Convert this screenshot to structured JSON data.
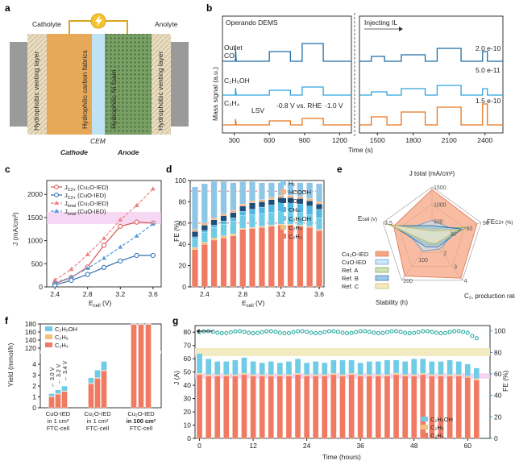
{
  "panels": {
    "a": {
      "letter": "a",
      "labels": {
        "catholyte": "Catholyte",
        "anolyte": "Anolyte",
        "hvl_left": "Hydrophobic venting layer",
        "carbon": "Hydrophilic carbon fabrics",
        "nifoam": "Hydrophilic Ni foam",
        "hvl_right": "Hydrophobic venting layer",
        "cem": "CEM",
        "cathode": "Cathode",
        "anode": "Anode"
      },
      "colors": {
        "wire": "#d9a520",
        "catalyst": "#e39a3b",
        "nifoam": "#6b8f5a",
        "membrane": "#bfe3f2",
        "plate": "#9a9a9a"
      },
      "icon": "lightning-icon"
    },
    "b": {
      "letter": "b",
      "labels": {
        "title": "Operando DEMS",
        "inject": "Injecting IL",
        "s1": "Outlet",
        "s1b": "CO",
        "s2": "C₂H₅OH",
        "s3": "C₂H₄",
        "lsv": "LSV",
        "v1": "-0.8 V vs. RHE",
        "v2": "-1.0 V",
        "scale1": "2.0 e-10",
        "scale2": "5.0 e-11",
        "scale3": "1.5 e-10",
        "ylabel": "Mass signal (a.u.)",
        "xlabel": "Time (s)"
      },
      "ticks_left": [
        "300",
        "600",
        "900",
        "1200"
      ],
      "ticks_right": [
        "1500",
        "1800",
        "2100",
        "2400"
      ],
      "colors": {
        "co": "#1f6ea8",
        "eth": "#2ea3dc",
        "c2h4": "#e8761c"
      }
    },
    "c": {
      "letter": "c",
      "ylabel": "J (mA/cm²)",
      "xlabel": "E",
      "xlabel_sub": "cell",
      "xlabel_unit": " (V)",
      "xticks": [
        "2.4",
        "2.8",
        "3.2",
        "3.6"
      ],
      "yticks": [
        "0",
        "500",
        "1000",
        "1500",
        "2000"
      ],
      "legend": [
        "J (Cu₂O-IED)",
        "J (CuO-IED)",
        "J (Cu₂O-IED)",
        "J (CuO-IED)"
      ],
      "legend_sub": [
        "C2+",
        "C2+",
        "total",
        "total"
      ]
    },
    "d": {
      "letter": "d",
      "ylabel": "FE (%)",
      "xlabel": "E",
      "xlabel_sub": "cell",
      "xlabel_unit": " (V)",
      "xticks": [
        "2.4",
        "2.8",
        "3.2",
        "3.6"
      ],
      "yticks": [
        "0",
        "20",
        "40",
        "60",
        "80",
        "100"
      ],
      "legend": [
        "H₂",
        "HCOOH",
        "CO",
        "CH₄",
        "C₂H₅OH",
        "C₂H₆",
        "C₂H₄"
      ]
    },
    "e": {
      "letter": "e",
      "axes": [
        "J total (mA/cm²)",
        "FE",
        "C₂, production rate",
        "Stability (h)",
        "E"
      ],
      "axis_extra": [
        "",
        "C2+ (%)",
        "(mmol/h)",
        "",
        "cell (V)"
      ],
      "rtick_j": [
        "500",
        "1000",
        "1500"
      ],
      "rtick_fe": [
        "30",
        "60",
        "90"
      ],
      "rtick_rate": [
        "2",
        "3",
        "4"
      ],
      "rtick_stab": [
        "100",
        "200"
      ],
      "rtick_e": [
        "3.5"
      ],
      "legend": [
        "Cu₂O-IED",
        "CuO-IED",
        "Ref. A",
        "Ref. B",
        "Ref. C"
      ]
    },
    "f": {
      "letter": "f",
      "ylabel": "Yield (mmol/h)",
      "yticks": [
        "0",
        "1",
        "2",
        "3",
        "4",
        "120",
        "140",
        "160",
        "180"
      ],
      "volts": [
        "3.0 V",
        "3.2 V",
        "3.4 V"
      ],
      "groups": [
        [
          "CuO-IED",
          "in 1 cm²",
          "FTC-cell"
        ],
        [
          "Cu₂O-IED",
          "in 1 cm²",
          "FTC-cell"
        ],
        [
          "Cu₂O-IED",
          "in 100 cm²",
          "FTC-cell"
        ]
      ],
      "legend": [
        "C₂H₅OH",
        "C₂H₆",
        "C₂H₄"
      ]
    },
    "g": {
      "letter": "g",
      "ylabel_left": "J (A)",
      "ylabel_right": "FE (%)",
      "xlabel": "Time (hours)",
      "xticks": [
        "0",
        "12",
        "24",
        "36",
        "48",
        "60"
      ],
      "yticks_left": [
        "0",
        "10",
        "20",
        "30",
        "40",
        "50",
        "60",
        "70",
        "80"
      ],
      "yticks_right": [
        "0",
        "20",
        "40",
        "60",
        "80",
        "100"
      ],
      "legend": [
        "C₂H₅OH",
        "C₂H₆",
        "C₂H₄"
      ]
    }
  },
  "colors": {
    "red_line": "#d9534f",
    "blue_line": "#2c6db0",
    "red_dash": "#f08080",
    "blue_dash": "#5b9bd5",
    "h2": "#8fc6e6",
    "hcooh": "#f4b183",
    "co": "#1f4e79",
    "ch4": "#52b7e3",
    "c2h5oh": "#6fcbe6",
    "c2h6": "#f1c27d",
    "c2h4": "#f07b62",
    "teal": "#1aa39a",
    "pink": "#f4c8f0",
    "cream": "#f3eac2"
  },
  "chart_data": [
    {
      "panel": "c",
      "type": "line",
      "x": [
        2.4,
        2.6,
        2.8,
        3.0,
        3.2,
        3.4,
        3.6
      ],
      "series": [
        {
          "name": "J C2+ (Cu₂O-IED)",
          "values": [
            70,
            200,
            430,
            900,
            1310,
            1400,
            1380
          ]
        },
        {
          "name": "J C2+ (CuO-IED)",
          "values": [
            40,
            140,
            270,
            420,
            560,
            680,
            680
          ]
        },
        {
          "name": "J total (Cu₂O-IED)",
          "values": [
            150,
            380,
            700,
            1050,
            1450,
            1760,
            2120
          ]
        },
        {
          "name": "J total (CuO-IED)",
          "values": [
            90,
            210,
            400,
            620,
            860,
            1100,
            1360
          ]
        }
      ],
      "ylim": [
        0,
        2300
      ]
    },
    {
      "panel": "d",
      "type": "bar",
      "categories": [
        "2.3",
        "2.4",
        "2.5",
        "2.6",
        "2.7",
        "2.8",
        "2.9",
        "3.0",
        "3.1",
        "3.2",
        "3.3",
        "3.4",
        "3.5",
        "3.6"
      ],
      "series": [
        {
          "name": "C₂H₄",
          "values": [
            35,
            40,
            44,
            46,
            48,
            54,
            55,
            56,
            57,
            58,
            58,
            57,
            56,
            53
          ]
        },
        {
          "name": "C₂H₆",
          "values": [
            2,
            2,
            2,
            2,
            2,
            1,
            1,
            1,
            1,
            1,
            1,
            1,
            1,
            1
          ]
        },
        {
          "name": "C₂H₅OH",
          "values": [
            8,
            9,
            10,
            11,
            12,
            12,
            12,
            12,
            12,
            12,
            12,
            12,
            11,
            11
          ]
        },
        {
          "name": "CH₄",
          "values": [
            2,
            2,
            2,
            3,
            3,
            4,
            5,
            6,
            7,
            8,
            8,
            8,
            8,
            8
          ]
        },
        {
          "name": "CO",
          "values": [
            5,
            5,
            5,
            5,
            5,
            5,
            6,
            5,
            5,
            5,
            5,
            5,
            5,
            5
          ]
        },
        {
          "name": "HCOOH",
          "values": [
            2,
            2,
            2,
            2,
            2,
            2,
            2,
            2,
            2,
            2,
            2,
            2,
            2,
            2
          ]
        },
        {
          "name": "H₂",
          "values": [
            40,
            37,
            34,
            30,
            26,
            21,
            18,
            16,
            14,
            12,
            12,
            13,
            15,
            17
          ]
        }
      ],
      "ylim": [
        0,
        100
      ]
    },
    {
      "panel": "e",
      "type": "radar",
      "axes": [
        "J total",
        "FE C2+",
        "C2 production rate",
        "Stability",
        "E cell"
      ],
      "series": [
        {
          "name": "Cu₂O-IED",
          "values": [
            0.95,
            0.92,
            0.95,
            0.9,
            0.78
          ]
        },
        {
          "name": "CuO-IED",
          "values": [
            0.35,
            0.5,
            0.25,
            0.3,
            0.55
          ]
        },
        {
          "name": "Ref. A",
          "values": [
            0.2,
            0.7,
            0.15,
            0.15,
            0.85
          ]
        },
        {
          "name": "Ref. B",
          "values": [
            0.25,
            0.6,
            0.2,
            0.2,
            0.8
          ]
        },
        {
          "name": "Ref. C",
          "values": [
            0.15,
            0.55,
            0.12,
            0.1,
            0.9
          ]
        }
      ]
    },
    {
      "panel": "f",
      "type": "bar",
      "categories": [
        "CuO 3.0",
        "CuO 3.2",
        "CuO 3.4",
        "Cu2O 3.0",
        "Cu2O 3.2",
        "Cu2O 3.4",
        "100cm 3.0",
        "100cm 3.2",
        "100cm 3.4"
      ],
      "series": [
        {
          "name": "C₂H₄",
          "values": [
            1.0,
            1.25,
            1.5,
            2.2,
            2.7,
            3.4,
            130,
            140,
            150
          ]
        },
        {
          "name": "C₂H₆",
          "values": [
            0.05,
            0.05,
            0.05,
            0.06,
            0.06,
            0.06,
            2,
            2,
            2
          ]
        },
        {
          "name": "C₂H₅OH",
          "values": [
            0.25,
            0.35,
            0.45,
            0.5,
            0.7,
            0.8,
            20,
            22,
            24
          ]
        }
      ]
    },
    {
      "panel": "g",
      "type": "bar",
      "x": [
        0,
        2,
        4,
        6,
        8,
        10,
        12,
        14,
        16,
        18,
        20,
        22,
        24,
        26,
        28,
        30,
        32,
        34,
        36,
        38,
        40,
        42,
        44,
        46,
        48,
        50,
        52,
        54,
        56,
        58,
        60,
        62
      ],
      "series": [
        {
          "name": "C₂H₄",
          "values": [
            48,
            47,
            47,
            47,
            47,
            48,
            47,
            47,
            47,
            47,
            47,
            48,
            47,
            47,
            47,
            48,
            47,
            48,
            47,
            47,
            47,
            47,
            48,
            47,
            47,
            48,
            47,
            47,
            47,
            47,
            46,
            44
          ]
        },
        {
          "name": "C₂H₆",
          "values": [
            1,
            1,
            1,
            1,
            1,
            1,
            1,
            1,
            1,
            1,
            1,
            1,
            1,
            1,
            1,
            1,
            1,
            1,
            1,
            1,
            1,
            1,
            1,
            1,
            1,
            1,
            1,
            1,
            1,
            1,
            1,
            1
          ]
        },
        {
          "name": "C₂H₅OH",
          "values": [
            15,
            12,
            10,
            10,
            11,
            12,
            10,
            9,
            10,
            9,
            10,
            11,
            9,
            10,
            9,
            10,
            11,
            10,
            9,
            10,
            10,
            11,
            10,
            10,
            12,
            11,
            10,
            10,
            11,
            10,
            9,
            8
          ]
        }
      ],
      "current_A": [
        80,
        80,
        80,
        80,
        80,
        80,
        80,
        80,
        80,
        80,
        80,
        80,
        80,
        80,
        80,
        80,
        80,
        80,
        80,
        80,
        80,
        80,
        80,
        80,
        80,
        80,
        80,
        80,
        80,
        80,
        80,
        80
      ],
      "fe_c2_percent_approx": 90,
      "ylim_left": [
        0,
        85
      ],
      "ylim_right": [
        0,
        105
      ]
    }
  ]
}
